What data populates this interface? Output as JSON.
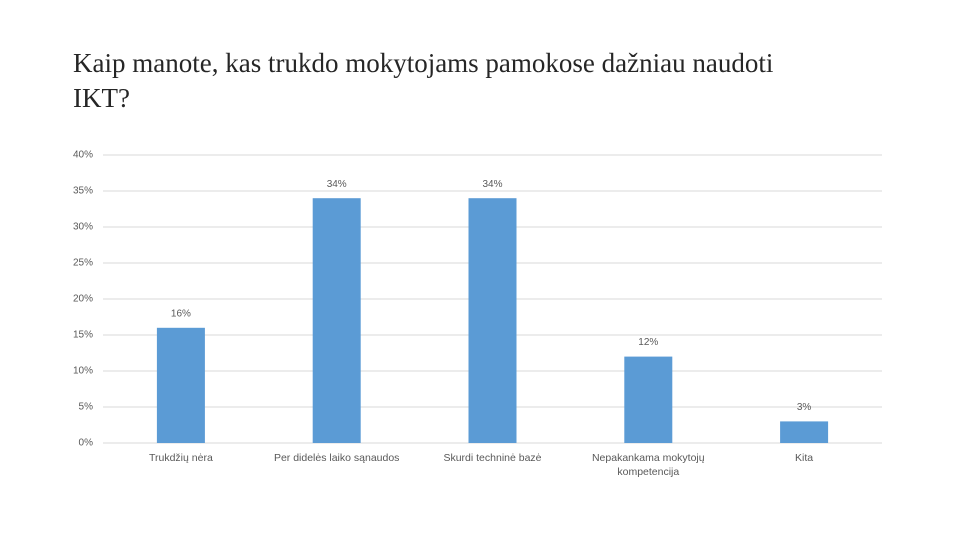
{
  "chart_data": {
    "type": "bar",
    "title": "Kaip manote, kas trukdo mokytojams pamokose dažniau naudoti IKT?",
    "categories": [
      "Trukdžių nėra",
      "Per didelės laiko sąnaudos",
      "Skurdi techninė bazė",
      "Nepakankama mokytojų kompetencija",
      "Kita"
    ],
    "values": [
      16,
      34,
      34,
      12,
      3
    ],
    "value_labels": [
      "16%",
      "34%",
      "34%",
      "12%",
      "3%"
    ],
    "color": "#5b9bd5",
    "ylim": [
      0,
      40
    ],
    "yticks": [
      {
        "value": 0,
        "label": "0%"
      },
      {
        "value": 5,
        "label": "5%"
      },
      {
        "value": 10,
        "label": "10%"
      },
      {
        "value": 15,
        "label": "15%"
      },
      {
        "value": 20,
        "label": "20%"
      },
      {
        "value": 25,
        "label": "25%"
      },
      {
        "value": 30,
        "label": "30%"
      },
      {
        "value": 35,
        "label": "35%"
      },
      {
        "value": 40,
        "label": "40%"
      }
    ],
    "grid": true
  }
}
